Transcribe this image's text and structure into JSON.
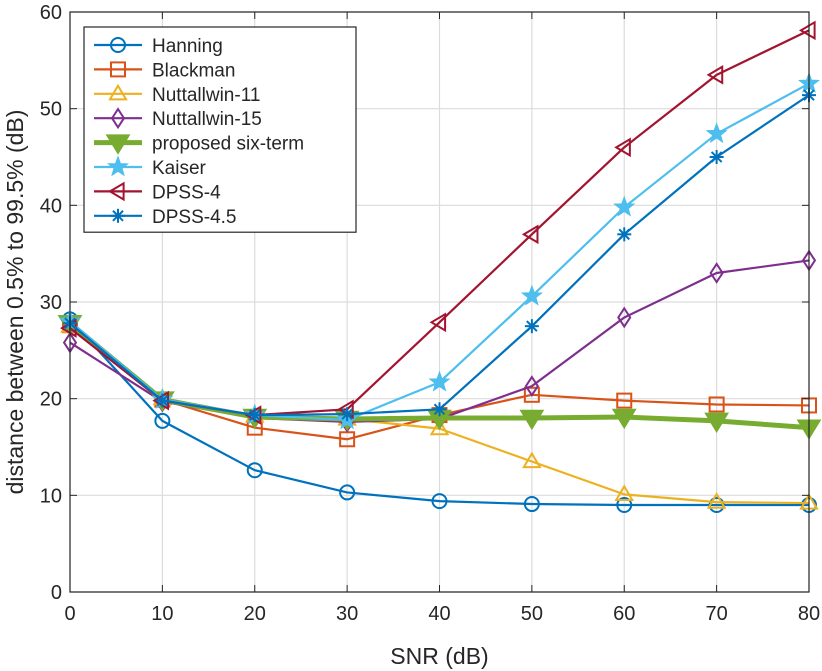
{
  "chart_data": {
    "type": "line",
    "xlabel": "SNR (dB)",
    "ylabel": "distance between 0.5% to 99.5% (dB)",
    "xlim": [
      0,
      80
    ],
    "ylim": [
      0,
      60
    ],
    "xticks": [
      0,
      10,
      20,
      30,
      40,
      50,
      60,
      70,
      80
    ],
    "yticks": [
      0,
      10,
      20,
      30,
      40,
      50,
      60
    ],
    "grid": true,
    "legend_position": "top-left",
    "x": [
      0,
      10,
      20,
      30,
      40,
      50,
      60,
      70,
      80
    ],
    "series": [
      {
        "name": "Hanning",
        "color": "#0072BD",
        "marker": "circle",
        "line_width": "normal",
        "values": [
          28.2,
          17.7,
          12.6,
          10.3,
          9.4,
          9.1,
          9.0,
          9.0,
          9.0
        ]
      },
      {
        "name": "Blackman",
        "color": "#D95319",
        "marker": "square",
        "line_width": "normal",
        "values": [
          27.6,
          19.9,
          17.0,
          15.8,
          18.3,
          20.4,
          19.8,
          19.4,
          19.3
        ]
      },
      {
        "name": "Nuttallwin-11",
        "color": "#EDB120",
        "marker": "triangle-up",
        "line_width": "normal",
        "values": [
          27.5,
          20.0,
          18.2,
          17.9,
          16.9,
          13.5,
          10.1,
          9.3,
          9.2
        ]
      },
      {
        "name": "Nuttallwin-15",
        "color": "#7E2F8E",
        "marker": "diamond",
        "line_width": "normal",
        "values": [
          25.8,
          19.7,
          18.0,
          17.6,
          17.9,
          21.3,
          28.4,
          33.0,
          34.3
        ]
      },
      {
        "name": "proposed six-term",
        "color": "#77AC30",
        "marker": "triangle-down-filled",
        "line_width": "thick",
        "values": [
          27.8,
          19.9,
          18.1,
          17.9,
          18.0,
          18.0,
          18.1,
          17.7,
          17.0
        ]
      },
      {
        "name": "Kaiser",
        "color": "#4DBEEE",
        "marker": "pentagram",
        "line_width": "normal",
        "values": [
          28.0,
          19.9,
          18.3,
          17.8,
          21.7,
          30.6,
          39.8,
          47.4,
          52.6
        ]
      },
      {
        "name": "DPSS-4",
        "color": "#A2142F",
        "marker": "triangle-left",
        "line_width": "normal",
        "values": [
          27.3,
          19.8,
          18.3,
          18.9,
          27.9,
          37.0,
          46.0,
          53.5,
          58.1
        ]
      },
      {
        "name": "DPSS-4.5",
        "color": "#0072BD",
        "marker": "asterisk",
        "line_width": "normal",
        "values": [
          27.8,
          19.8,
          18.3,
          18.4,
          18.9,
          27.5,
          37.0,
          45.0,
          51.4
        ]
      }
    ]
  }
}
